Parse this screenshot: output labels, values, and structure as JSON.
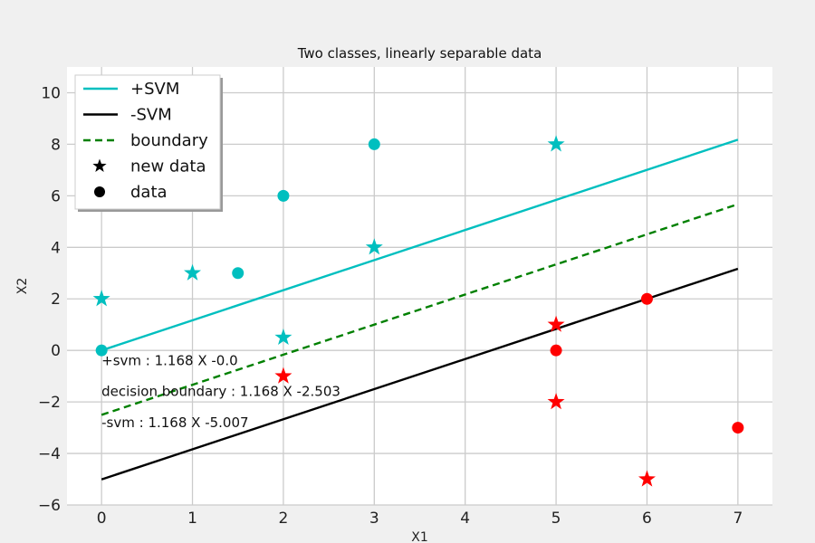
{
  "chart_data": {
    "type": "scatter",
    "title": "Two classes, linearly separable data",
    "xlabel": "X1",
    "ylabel": "X2",
    "xlim": [
      -0.38,
      7.38
    ],
    "ylim": [
      -6,
      11
    ],
    "xticks": [
      0,
      1,
      2,
      3,
      4,
      5,
      6,
      7
    ],
    "yticks": [
      -6,
      -4,
      -2,
      0,
      2,
      4,
      6,
      8,
      10
    ],
    "grid": true,
    "legend_position": "top-left",
    "colors": {
      "class_a": "#00bfbf",
      "class_b": "#ff0000",
      "boundary": "#008000",
      "neg_svm": "#000000",
      "background": "#f0f0f0"
    },
    "lines": [
      {
        "name": "+SVM",
        "slope": 1.168,
        "intercept": 0.0,
        "x": [
          0,
          7
        ],
        "color": "#00bfbf",
        "style": "solid"
      },
      {
        "name": "-SVM",
        "slope": 1.168,
        "intercept": -5.007,
        "x": [
          0,
          7
        ],
        "color": "#000000",
        "style": "solid"
      },
      {
        "name": "boundary",
        "slope": 1.168,
        "intercept": -2.503,
        "x": [
          0,
          7
        ],
        "color": "#008000",
        "style": "dashed"
      }
    ],
    "data_points": [
      {
        "x": 0,
        "y": 0,
        "class": "a"
      },
      {
        "x": 1.5,
        "y": 3,
        "class": "a"
      },
      {
        "x": 2,
        "y": 6,
        "class": "a"
      },
      {
        "x": 3,
        "y": 8,
        "class": "a"
      },
      {
        "x": 5,
        "y": 0,
        "class": "b"
      },
      {
        "x": 6,
        "y": 2,
        "class": "b"
      },
      {
        "x": 7,
        "y": -3,
        "class": "b"
      }
    ],
    "new_data_points": [
      {
        "x": 0,
        "y": 2,
        "class": "a"
      },
      {
        "x": 1,
        "y": 3,
        "class": "a"
      },
      {
        "x": 2,
        "y": 0.5,
        "class": "a"
      },
      {
        "x": 3,
        "y": 4,
        "class": "a"
      },
      {
        "x": 5,
        "y": 8,
        "class": "a"
      },
      {
        "x": 2,
        "y": -1,
        "class": "b"
      },
      {
        "x": 5,
        "y": 1,
        "class": "b"
      },
      {
        "x": 5,
        "y": -2,
        "class": "b"
      },
      {
        "x": 6,
        "y": -5,
        "class": "b"
      }
    ],
    "legend": [
      {
        "label": "+SVM",
        "kind": "line",
        "color": "#00bfbf",
        "style": "solid"
      },
      {
        "label": "-SVM",
        "kind": "line",
        "color": "#000000",
        "style": "solid"
      },
      {
        "label": "boundary",
        "kind": "line",
        "color": "#008000",
        "style": "dashed"
      },
      {
        "label": "new data",
        "kind": "star",
        "color": "#000000"
      },
      {
        "label": "data",
        "kind": "circle",
        "color": "#000000"
      }
    ],
    "annotations": [
      {
        "text": "+svm : 1.168 X -0.0",
        "x": 0,
        "y": -0.4
      },
      {
        "text": "decision boundary : 1.168 X -2.503",
        "x": 0,
        "y": -1.6
      },
      {
        "text": "-svm : 1.168 X -5.007",
        "x": 0,
        "y": -2.8
      }
    ]
  }
}
